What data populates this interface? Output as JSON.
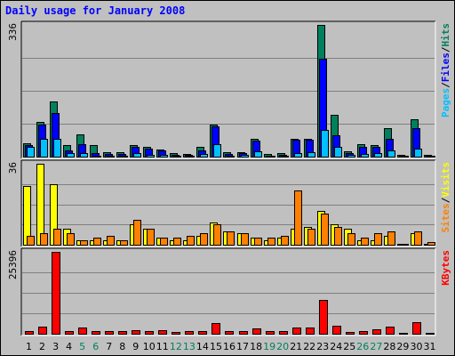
{
  "chart_data": {
    "type": "bar",
    "title": "Daily usage for January 2008",
    "categories": [
      "1",
      "2",
      "3",
      "4",
      "5",
      "6",
      "7",
      "8",
      "9",
      "10",
      "11",
      "12",
      "13",
      "14",
      "15",
      "16",
      "17",
      "18",
      "19",
      "20",
      "21",
      "22",
      "23",
      "24",
      "25",
      "26",
      "27",
      "28",
      "29",
      "30",
      "31"
    ],
    "weekend_days": [
      5,
      6,
      12,
      13,
      19,
      20,
      26,
      27
    ],
    "colors": {
      "hits": "#00805c",
      "files": "#0000ff",
      "pages": "#00c0ff",
      "visits": "#ffff00",
      "sites": "#ff8000",
      "kbytes": "#ff0000",
      "title": "#0000ff",
      "weekend_label": "#00805c",
      "weekday_label": "#000000"
    },
    "panels": [
      {
        "id": "hits-files-pages",
        "ymax_label": "336",
        "ylim": [
          0,
          336
        ],
        "legend": [
          {
            "text": "Hits",
            "color": "#00805c"
          },
          {
            "text": "Files",
            "color": "#0000ff"
          },
          {
            "text": "Pages",
            "color": "#00c0ff"
          }
        ],
        "separator": "/",
        "series": [
          {
            "name": "Hits",
            "color": "#00805c",
            "values": [
              35,
              89,
              141,
              29,
              56,
              30,
              11,
              11,
              29,
              24,
              18,
              8,
              7,
              24,
              81,
              11,
              12,
              46,
              7,
              8,
              46,
              46,
              336,
              107,
              14,
              31,
              29,
              73,
              5,
              96,
              5
            ]
          },
          {
            "name": "Files",
            "color": "#0000ff",
            "values": [
              30,
              82,
              111,
              17,
              32,
              9,
              7,
              7,
              24,
              21,
              15,
              5,
              5,
              15,
              78,
              7,
              8,
              41,
              3,
              5,
              43,
              44,
              250,
              54,
              10,
              26,
              26,
              45,
              0,
              73,
              0
            ]
          },
          {
            "name": "Pages",
            "color": "#00c0ff",
            "values": [
              24,
              45,
              45,
              10,
              8,
              2,
              3,
              3,
              9,
              5,
              5,
              2,
              2,
              7,
              31,
              3,
              5,
              14,
              2,
              2,
              10,
              11,
              68,
              25,
              5,
              6,
              9,
              16,
              0,
              21,
              0
            ]
          }
        ]
      },
      {
        "id": "visits-sites",
        "ymax_label": "36",
        "ylim": [
          0,
          36
        ],
        "legend": [
          {
            "text": "Visits",
            "color": "#ffff00"
          },
          {
            "text": "Sites",
            "color": "#ff8000"
          }
        ],
        "separator": "/",
        "series": [
          {
            "name": "Visits",
            "color": "#ffff00",
            "values": [
              26,
              36,
              27,
              7,
              2,
              2,
              2,
              2,
              9,
              7,
              3,
              2,
              2,
              4,
              10,
              6,
              5,
              3,
              2,
              3,
              7,
              8,
              15,
              9,
              7,
              2,
              2,
              4,
              0,
              5,
              0
            ]
          },
          {
            "name": "Sites",
            "color": "#ff8000",
            "values": [
              4,
              5,
              7,
              5,
              2,
              3,
              4,
              2,
              11,
              7,
              3,
              3,
              4,
              5,
              9,
              6,
              5,
              3,
              3,
              4,
              24,
              7,
              14,
              8,
              5,
              3,
              5,
              6,
              0,
              6,
              1
            ]
          }
        ]
      },
      {
        "id": "kbytes",
        "ymax_label": "25396",
        "ylim": [
          0,
          25396
        ],
        "legend": [
          {
            "text": "KBytes",
            "color": "#ff0000"
          }
        ],
        "separator": "",
        "series": [
          {
            "name": "KBytes",
            "color": "#ff0000",
            "values": [
              900,
              2200,
              25396,
              900,
              1900,
              700,
              800,
              700,
              1100,
              900,
              1100,
              600,
              700,
              900,
              3300,
              900,
              700,
              1700,
              700,
              700,
              2000,
              2000,
              10500,
              2600,
              600,
              800,
              1500,
              2200,
              400,
              3600,
              300
            ]
          }
        ]
      }
    ]
  }
}
